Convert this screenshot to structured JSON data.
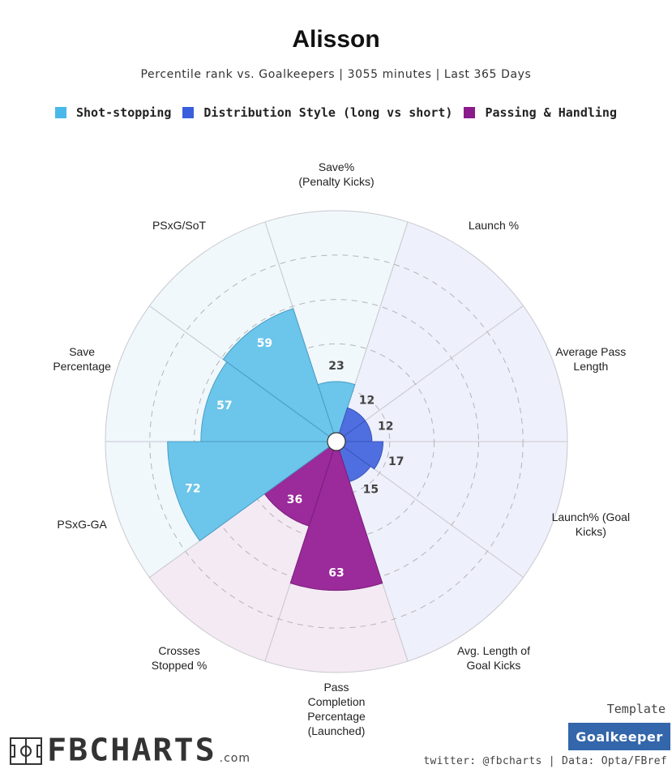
{
  "header": {
    "title": "Alisson",
    "subtitle": "Percentile rank vs. Goalkeepers | 3055 minutes | Last 365 Days"
  },
  "legend": [
    {
      "label": "Shot-stopping",
      "color": "#4ab8e8"
    },
    {
      "label": "Distribution Style (long vs short)",
      "color": "#3a5fdc"
    },
    {
      "label": "Passing & Handling",
      "color": "#8b1a8b"
    }
  ],
  "chart_data": {
    "type": "polar-bar",
    "title": "Alisson",
    "subtitle": "Percentile rank vs. Goalkeepers | 3055 minutes | Last 365 Days",
    "rlim": [
      0,
      100
    ],
    "gridlines": [
      20,
      40,
      60,
      80
    ],
    "categories": [
      {
        "lines": [
          "Save%",
          "(Penalty Kicks)"
        ],
        "value": 23,
        "group": "Shot-stopping"
      },
      {
        "lines": [
          "Launch %"
        ],
        "value": 12,
        "group": "Distribution Style (long vs short)"
      },
      {
        "lines": [
          "Average Pass",
          "Length"
        ],
        "value": 12,
        "group": "Distribution Style (long vs short)"
      },
      {
        "lines": [
          "Launch% (Goal",
          "Kicks)"
        ],
        "value": 17,
        "group": "Distribution Style (long vs short)"
      },
      {
        "lines": [
          "Avg. Length of",
          "Goal Kicks"
        ],
        "value": 15,
        "group": "Distribution Style (long vs short)"
      },
      {
        "lines": [
          "Pass",
          "Completion",
          "Percentage",
          "(Launched)"
        ],
        "value": 63,
        "group": "Passing & Handling"
      },
      {
        "lines": [
          "Crosses",
          "Stopped %"
        ],
        "value": 36,
        "group": "Passing & Handling"
      },
      {
        "lines": [
          "PSxG-GA"
        ],
        "value": 72,
        "group": "Shot-stopping"
      },
      {
        "lines": [
          "Save",
          "Percentage"
        ],
        "value": 57,
        "group": "Shot-stopping"
      },
      {
        "lines": [
          "PSxG/SoT"
        ],
        "value": 59,
        "group": "Shot-stopping"
      }
    ],
    "group_colors": {
      "Shot-stopping": {
        "fill": "#6cc5ea",
        "stroke": "#4a9cc4",
        "bg": "#f0f8fc",
        "text": "#ffffff",
        "text_small": "#444444"
      },
      "Distribution Style (long vs short)": {
        "fill": "#4f6fe0",
        "stroke": "#3a55b8",
        "bg": "#eef0fb",
        "text": "#444444",
        "text_small": "#444444"
      },
      "Passing & Handling": {
        "fill": "#9b2a9b",
        "stroke": "#7a1f7a",
        "bg": "#f4eaf4",
        "text": "#ffffff",
        "text_small": "#222222"
      }
    }
  },
  "footer": {
    "logo": "FBCHARTS",
    "logo_suffix": ".com",
    "template_label": "Template",
    "template_value": "Goalkeeper",
    "credit": "twitter: @fbcharts | Data: Opta/FBref"
  }
}
